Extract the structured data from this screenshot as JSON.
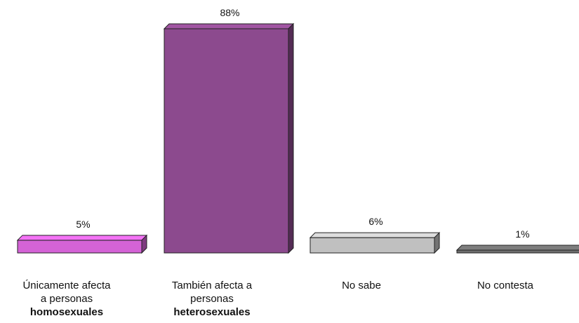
{
  "chart_data": {
    "type": "bar",
    "title": "",
    "xlabel": "",
    "ylabel": "",
    "ylim": [
      0,
      88
    ],
    "grid": false,
    "legend": "none",
    "categories": [
      {
        "line1": "Únicamente afecta",
        "line2": "a personas",
        "line3": "homosexuales"
      },
      {
        "line1": "También afecta a",
        "line2": "personas",
        "line3": "heterosexuales"
      },
      {
        "line1": "No sabe",
        "line2": "",
        "line3": ""
      },
      {
        "line1": "No contesta",
        "line2": "",
        "line3": ""
      }
    ],
    "values": [
      5,
      88,
      6,
      1
    ],
    "value_labels": [
      "5%",
      "88%",
      "6%",
      "1%"
    ],
    "colors": [
      "#d463d6",
      "#8c4a8e",
      "#c0c0c0",
      "#6e6e6e"
    ]
  }
}
